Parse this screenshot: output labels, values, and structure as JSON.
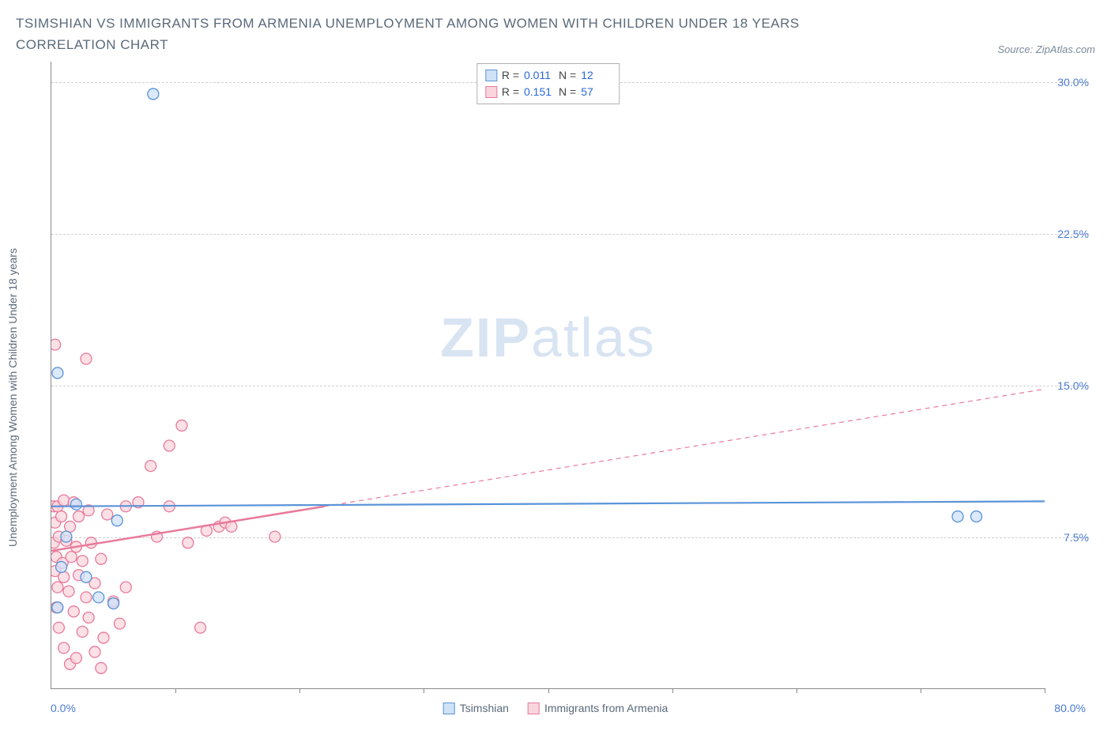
{
  "title": "TSIMSHIAN VS IMMIGRANTS FROM ARMENIA UNEMPLOYMENT AMONG WOMEN WITH CHILDREN UNDER 18 YEARS CORRELATION CHART",
  "source_label": "Source: ZipAtlas.com",
  "y_axis_label": "Unemployment Among Women with Children Under 18 years",
  "watermark": {
    "zip": "ZIP",
    "atlas": "atlas"
  },
  "chart": {
    "type": "scatter",
    "xlim": [
      0,
      80
    ],
    "ylim": [
      0,
      31
    ],
    "x_ticks": [
      10,
      20,
      30,
      40,
      50,
      60,
      70,
      80
    ],
    "y_ticks": [
      7.5,
      15.0,
      22.5,
      30.0
    ],
    "x_min_label": "0.0%",
    "x_max_label": "80.0%",
    "y_tick_labels": [
      "7.5%",
      "15.0%",
      "22.5%",
      "30.0%"
    ],
    "grid_color": "#d0d0d0",
    "axis_color": "#888888",
    "tick_label_color": "#4a7bd0",
    "marker_radius": 7,
    "marker_stroke_width": 1.3,
    "series": [
      {
        "id": "tsimshian",
        "label": "Tsimshian",
        "fill": "#cfe2f8",
        "stroke": "#5a93d8",
        "r_value": "0.011",
        "n_value": "12",
        "points": [
          [
            0.5,
            15.6
          ],
          [
            8.2,
            29.4
          ],
          [
            2.0,
            9.1
          ],
          [
            5.3,
            8.3
          ],
          [
            0.8,
            6.0
          ],
          [
            2.8,
            5.5
          ],
          [
            3.8,
            4.5
          ],
          [
            0.5,
            4.0
          ],
          [
            5.0,
            4.2
          ],
          [
            73.0,
            8.5
          ],
          [
            74.5,
            8.5
          ],
          [
            1.2,
            7.5
          ]
        ],
        "trend": {
          "y_at_xmin": 9.0,
          "y_at_xmax": 9.25,
          "solid_until_x": 80,
          "stroke_width": 2.2
        }
      },
      {
        "id": "armenia",
        "label": "Immigrants from Armenia",
        "fill": "#f9d5de",
        "stroke": "#e87a9a",
        "r_value": "0.151",
        "n_value": "57",
        "points": [
          [
            0.3,
            17.0
          ],
          [
            2.8,
            16.3
          ],
          [
            0.2,
            9.0
          ],
          [
            0.5,
            9.0
          ],
          [
            1.0,
            9.3
          ],
          [
            1.8,
            9.2
          ],
          [
            0.3,
            8.2
          ],
          [
            0.8,
            8.5
          ],
          [
            1.5,
            8.0
          ],
          [
            2.2,
            8.5
          ],
          [
            3.0,
            8.8
          ],
          [
            4.5,
            8.6
          ],
          [
            0.2,
            7.2
          ],
          [
            0.6,
            7.5
          ],
          [
            1.2,
            7.3
          ],
          [
            2.0,
            7.0
          ],
          [
            3.2,
            7.2
          ],
          [
            11.0,
            7.2
          ],
          [
            0.4,
            6.5
          ],
          [
            0.9,
            6.2
          ],
          [
            1.6,
            6.5
          ],
          [
            2.5,
            6.3
          ],
          [
            4.0,
            6.4
          ],
          [
            12.5,
            7.8
          ],
          [
            0.3,
            5.8
          ],
          [
            1.0,
            5.5
          ],
          [
            2.2,
            5.6
          ],
          [
            3.5,
            5.2
          ],
          [
            6.0,
            5.0
          ],
          [
            13.5,
            8.0
          ],
          [
            0.5,
            5.0
          ],
          [
            1.4,
            4.8
          ],
          [
            2.8,
            4.5
          ],
          [
            5.0,
            4.3
          ],
          [
            8.5,
            7.5
          ],
          [
            14.0,
            8.2
          ],
          [
            0.4,
            4.0
          ],
          [
            1.8,
            3.8
          ],
          [
            3.0,
            3.5
          ],
          [
            5.5,
            3.2
          ],
          [
            9.5,
            9.0
          ],
          [
            14.5,
            8.0
          ],
          [
            0.6,
            3.0
          ],
          [
            2.5,
            2.8
          ],
          [
            4.2,
            2.5
          ],
          [
            12.0,
            3.0
          ],
          [
            8.0,
            11.0
          ],
          [
            9.5,
            12.0
          ],
          [
            1.0,
            2.0
          ],
          [
            3.5,
            1.8
          ],
          [
            6.0,
            9.0
          ],
          [
            7.0,
            9.2
          ],
          [
            10.5,
            13.0
          ],
          [
            18.0,
            7.5
          ],
          [
            1.5,
            1.2
          ],
          [
            2.0,
            1.5
          ],
          [
            4.0,
            1.0
          ]
        ],
        "trend": {
          "y_at_xmin": 6.8,
          "y_at_xmax": 14.8,
          "solid_until_x": 22,
          "stroke_width": 2.5
        }
      }
    ]
  },
  "stats_legend": {
    "r_label": "R =",
    "n_label": "N ="
  }
}
